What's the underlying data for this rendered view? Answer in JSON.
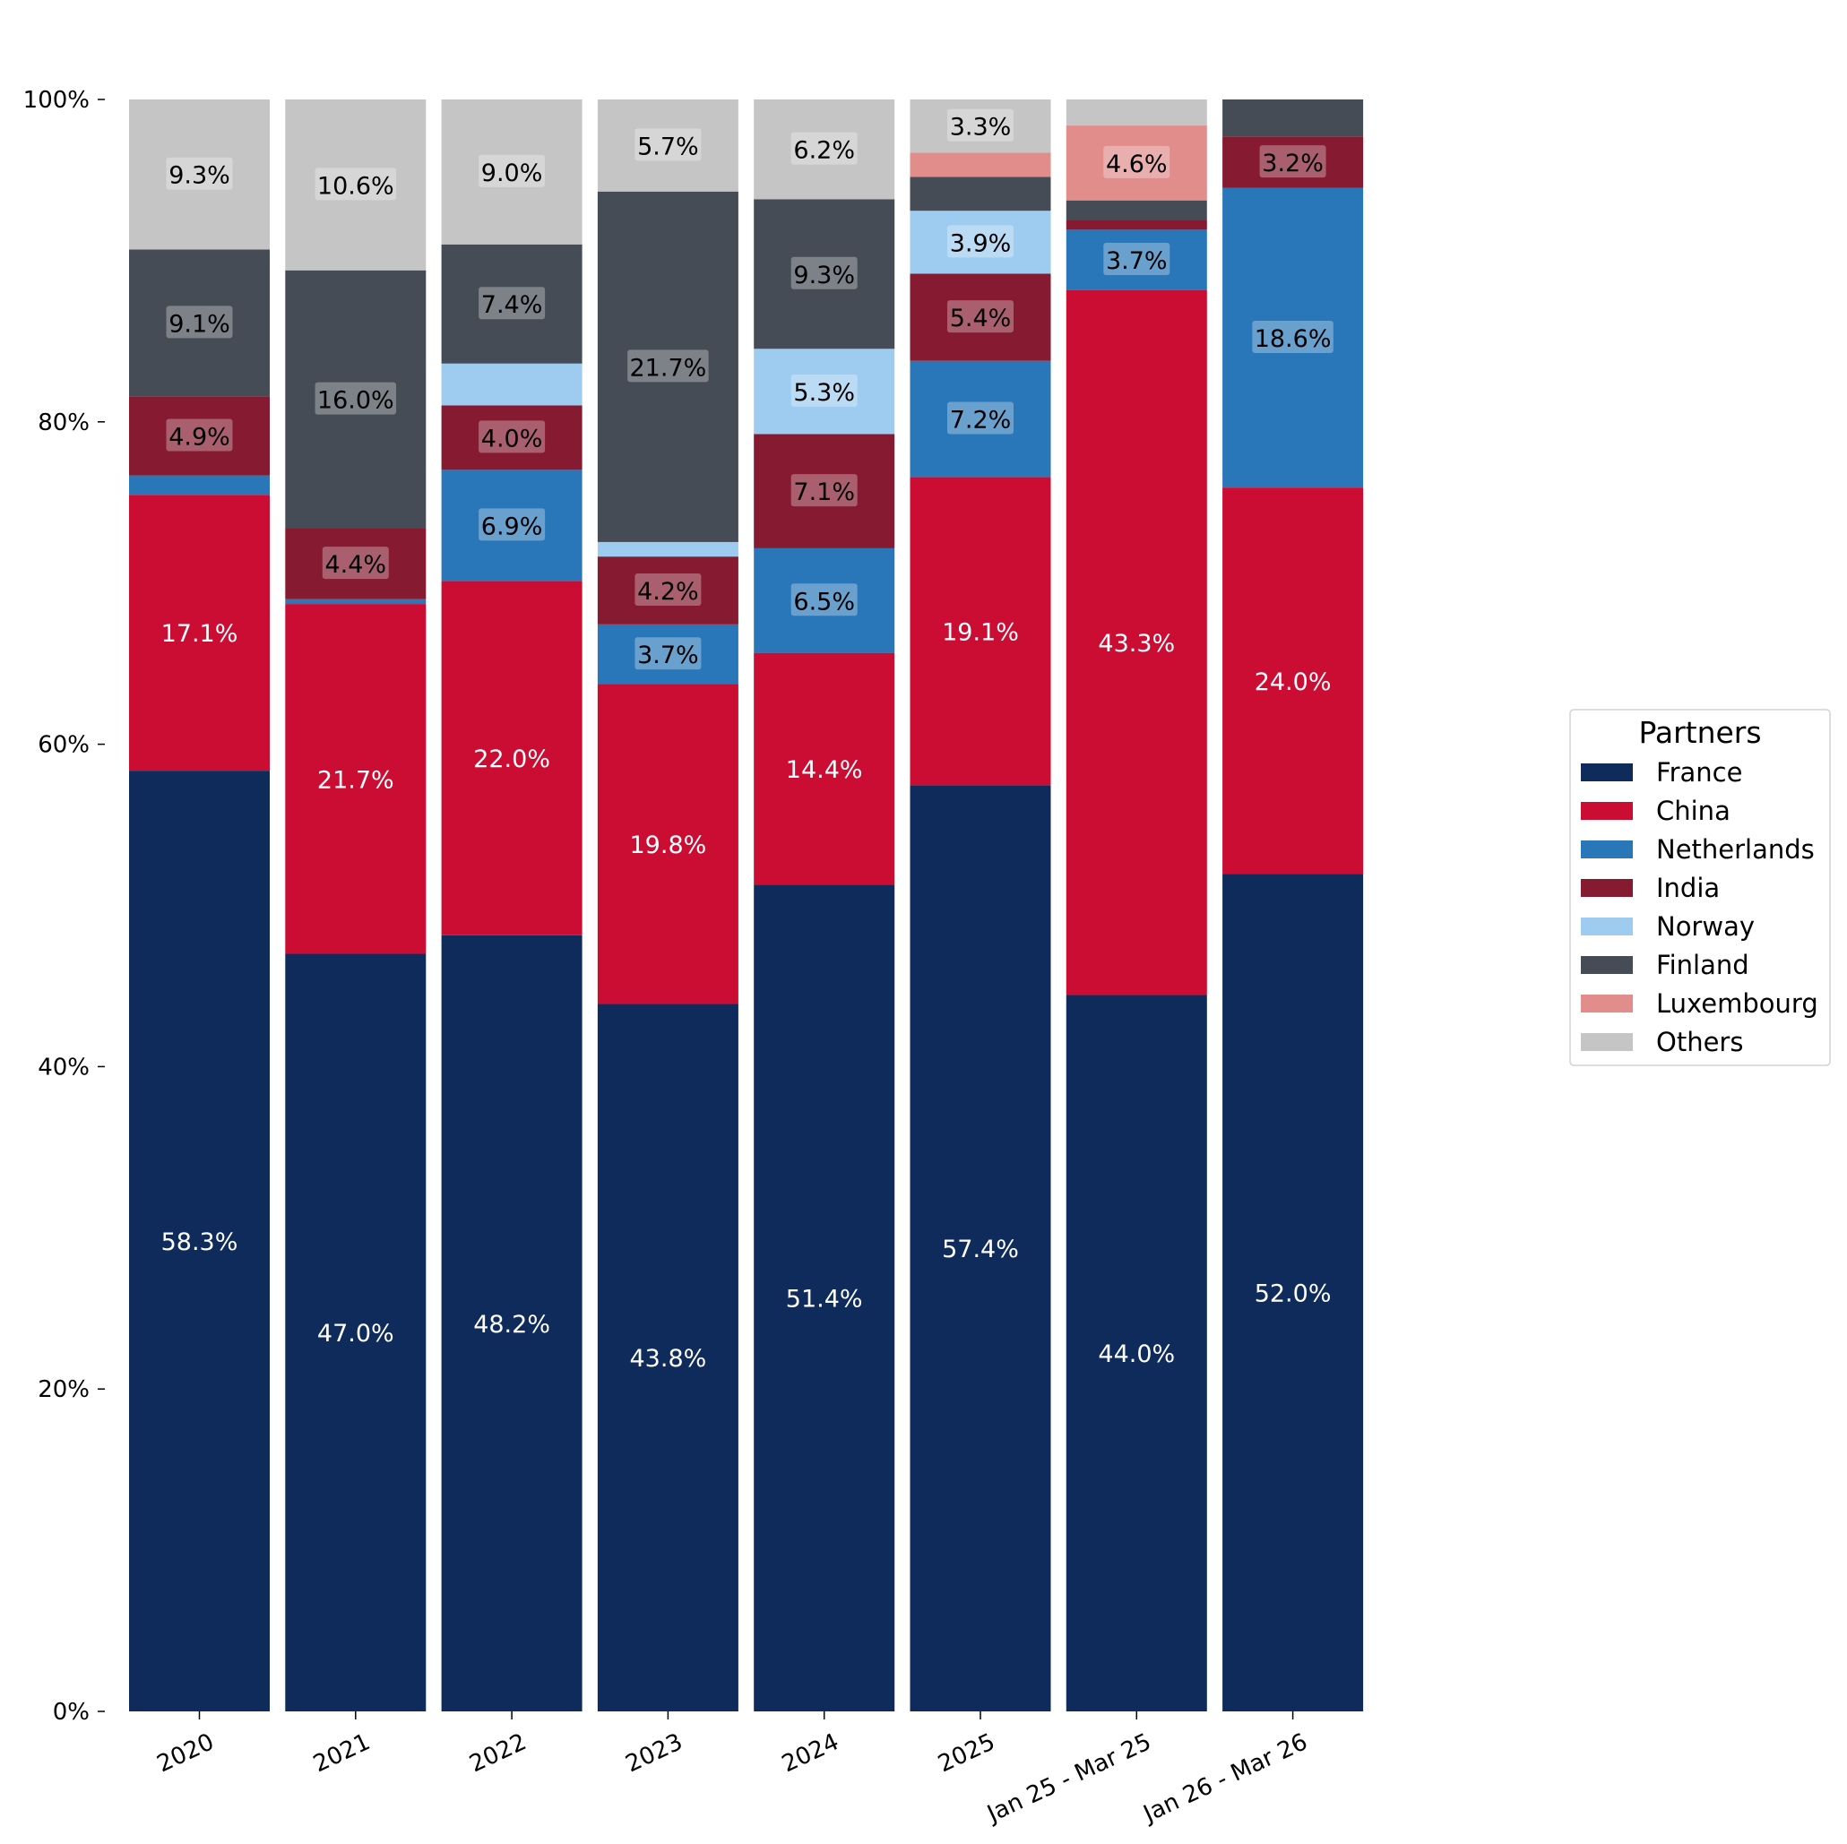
{
  "chart_data": {
    "type": "bar",
    "stacked": true,
    "normalized": true,
    "title": "",
    "xlabel": "",
    "ylabel": "",
    "ylim": [
      0,
      100
    ],
    "y_ticks": [
      "0%",
      "20%",
      "40%",
      "60%",
      "80%",
      "100%"
    ],
    "grid": false,
    "categories": [
      "2020",
      "2021",
      "2022",
      "2023",
      "2024",
      "2025",
      "Jan 25 - Mar 25",
      "Jan 26 - Mar 26"
    ],
    "series": [
      {
        "name": "France",
        "color": "#0e2b5c",
        "text_color": "#ffffff",
        "label_box": false,
        "values": [
          58.3,
          47.0,
          48.2,
          43.8,
          51.4,
          57.4,
          44.0,
          52.0
        ]
      },
      {
        "name": "China",
        "color": "#cb0c33",
        "text_color": "#ffffff",
        "label_box": false,
        "values": [
          17.1,
          21.7,
          22.0,
          19.8,
          14.4,
          19.1,
          43.3,
          24.0
        ]
      },
      {
        "name": "Netherlands",
        "color": "#2977b9",
        "text_color": "#000000",
        "label_box": true,
        "values": [
          1.2,
          0.3,
          6.9,
          3.7,
          6.5,
          7.2,
          3.7,
          18.6
        ]
      },
      {
        "name": "India",
        "color": "#861a30",
        "text_color": "#000000",
        "label_box": true,
        "values": [
          4.9,
          4.4,
          4.0,
          4.2,
          7.1,
          5.4,
          0.6,
          3.2
        ]
      },
      {
        "name": "Norway",
        "color": "#9ecbf0",
        "text_color": "#000000",
        "label_box": true,
        "values": [
          0,
          0,
          2.6,
          0.9,
          5.3,
          3.9,
          0,
          0
        ]
      },
      {
        "name": "Finland",
        "color": "#464c55",
        "text_color": "#000000",
        "label_box": true,
        "values": [
          9.1,
          16.0,
          7.4,
          21.7,
          9.3,
          2.1,
          1.2,
          2.3
        ]
      },
      {
        "name": "Luxembourg",
        "color": "#e08d8b",
        "text_color": "#000000",
        "label_box": true,
        "values": [
          0,
          0,
          0,
          0,
          0,
          1.5,
          4.6,
          0
        ]
      },
      {
        "name": "Others",
        "color": "#c5c5c5",
        "text_color": "#000000",
        "label_box": true,
        "values": [
          9.3,
          10.6,
          9.0,
          5.7,
          6.2,
          3.3,
          1.6,
          0
        ]
      }
    ],
    "data_labels": [
      [
        "58.3%",
        "17.1%",
        "",
        "4.9%",
        "",
        "9.1%",
        "",
        "9.3%"
      ],
      [
        "47.0%",
        "21.7%",
        "",
        "4.4%",
        "",
        "16.0%",
        "",
        "10.6%"
      ],
      [
        "48.2%",
        "22.0%",
        "6.9%",
        "4.0%",
        "",
        "7.4%",
        "",
        "9.0%"
      ],
      [
        "43.8%",
        "19.8%",
        "3.7%",
        "4.2%",
        "",
        "21.7%",
        "",
        "5.7%"
      ],
      [
        "51.4%",
        "14.4%",
        "6.5%",
        "7.1%",
        "5.3%",
        "9.3%",
        "",
        "6.2%"
      ],
      [
        "57.4%",
        "19.1%",
        "7.2%",
        "5.4%",
        "3.9%",
        "",
        "",
        "3.3%"
      ],
      [
        "44.0%",
        "43.3%",
        "3.7%",
        "",
        "",
        "",
        "4.6%",
        ""
      ],
      [
        "52.0%",
        "24.0%",
        "18.6%",
        "3.2%",
        "",
        "",
        "",
        ""
      ]
    ],
    "legend": {
      "title": "Partners",
      "position": "right"
    }
  }
}
